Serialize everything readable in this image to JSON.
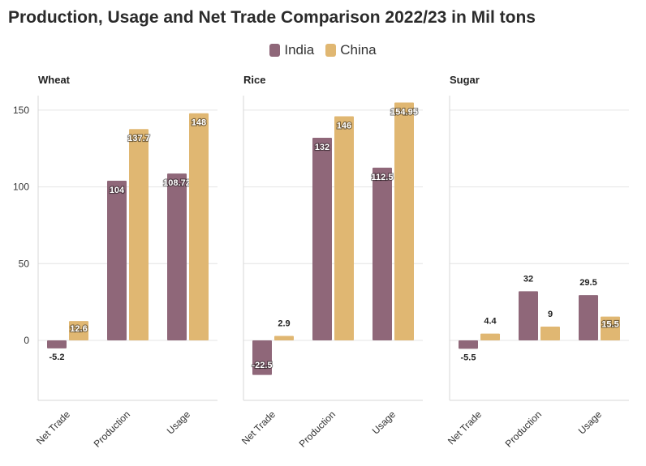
{
  "title": "Production, Usage and Net Trade Comparison 2022/23 in Mil tons",
  "legend": [
    {
      "name": "India",
      "color": "#8f6779"
    },
    {
      "name": "China",
      "color": "#e0b772"
    }
  ],
  "chart_data": [
    {
      "type": "bar",
      "title": "Wheat",
      "categories": [
        "Net Trade",
        "Production",
        "Usage"
      ],
      "series": [
        {
          "name": "India",
          "values": [
            -5.2,
            104,
            108.72
          ],
          "labels": [
            "-5.2",
            "104",
            "108.72"
          ]
        },
        {
          "name": "China",
          "values": [
            12.6,
            137.7,
            148
          ],
          "labels": [
            "12.6",
            "137.7",
            "148"
          ]
        }
      ],
      "ylim": [
        -40,
        160
      ],
      "yticks": [
        0,
        50,
        100,
        150
      ],
      "grid": true
    },
    {
      "type": "bar",
      "title": "Rice",
      "categories": [
        "Net Trade",
        "Production",
        "Usage"
      ],
      "series": [
        {
          "name": "India",
          "values": [
            -22.5,
            132,
            112.5
          ],
          "labels": [
            "-22.5",
            "132",
            "112.5"
          ]
        },
        {
          "name": "China",
          "values": [
            2.9,
            146,
            154.95
          ],
          "labels": [
            "2.9",
            "146",
            "154.95"
          ]
        }
      ],
      "ylim": [
        -40,
        160
      ],
      "yticks": [
        0,
        50,
        100,
        150
      ],
      "grid": true
    },
    {
      "type": "bar",
      "title": "Sugar",
      "categories": [
        "Net Trade",
        "Production",
        "Usage"
      ],
      "series": [
        {
          "name": "India",
          "values": [
            -5.5,
            32,
            29.5
          ],
          "labels": [
            "-5.5",
            "32",
            "29.5"
          ]
        },
        {
          "name": "China",
          "values": [
            4.4,
            9,
            15.5
          ],
          "labels": [
            "4.4",
            "9",
            "15.5"
          ]
        }
      ],
      "ylim": [
        -40,
        160
      ],
      "yticks": [
        0,
        50,
        100,
        150
      ],
      "grid": true
    }
  ]
}
